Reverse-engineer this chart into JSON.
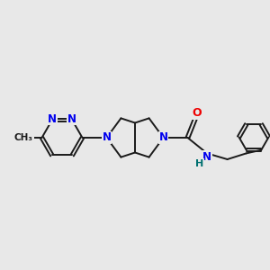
{
  "bg_color": "#e8e8e8",
  "bond_color": "#1a1a1a",
  "n_color": "#0000ee",
  "o_color": "#ee0000",
  "h_color": "#007070",
  "bond_width": 1.4,
  "figsize": [
    3.0,
    3.0
  ],
  "dpi": 100,
  "xlim": [
    0,
    10
  ],
  "ylim": [
    2,
    8.5
  ]
}
